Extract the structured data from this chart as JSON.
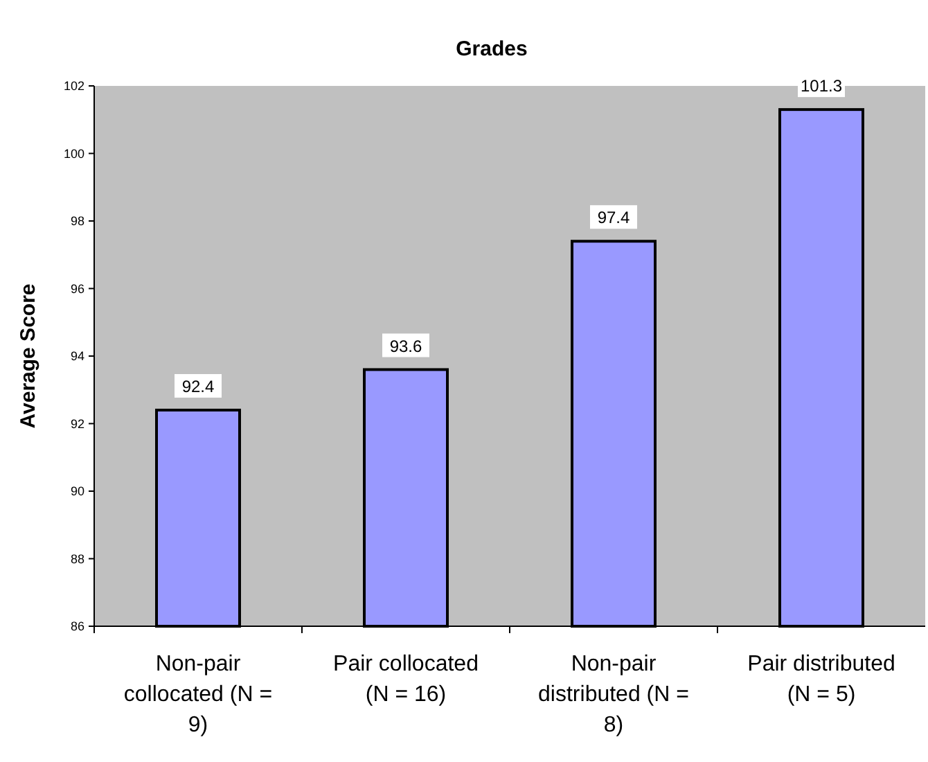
{
  "chart_data": {
    "type": "bar",
    "title": "Grades",
    "ylabel": "Average Score",
    "categories": [
      "Non-pair collocated (N = 9)",
      "Pair collocated (N = 16)",
      "Non-pair distributed (N = 8)",
      "Pair distributed (N = 5)"
    ],
    "values": [
      92.4,
      93.6,
      97.4,
      101.3
    ],
    "color": "#9999ff",
    "ylim": [
      86,
      102
    ],
    "yticks": [
      86,
      88,
      90,
      92,
      94,
      96,
      98,
      100,
      102
    ],
    "grid": false,
    "data_labels": true
  }
}
